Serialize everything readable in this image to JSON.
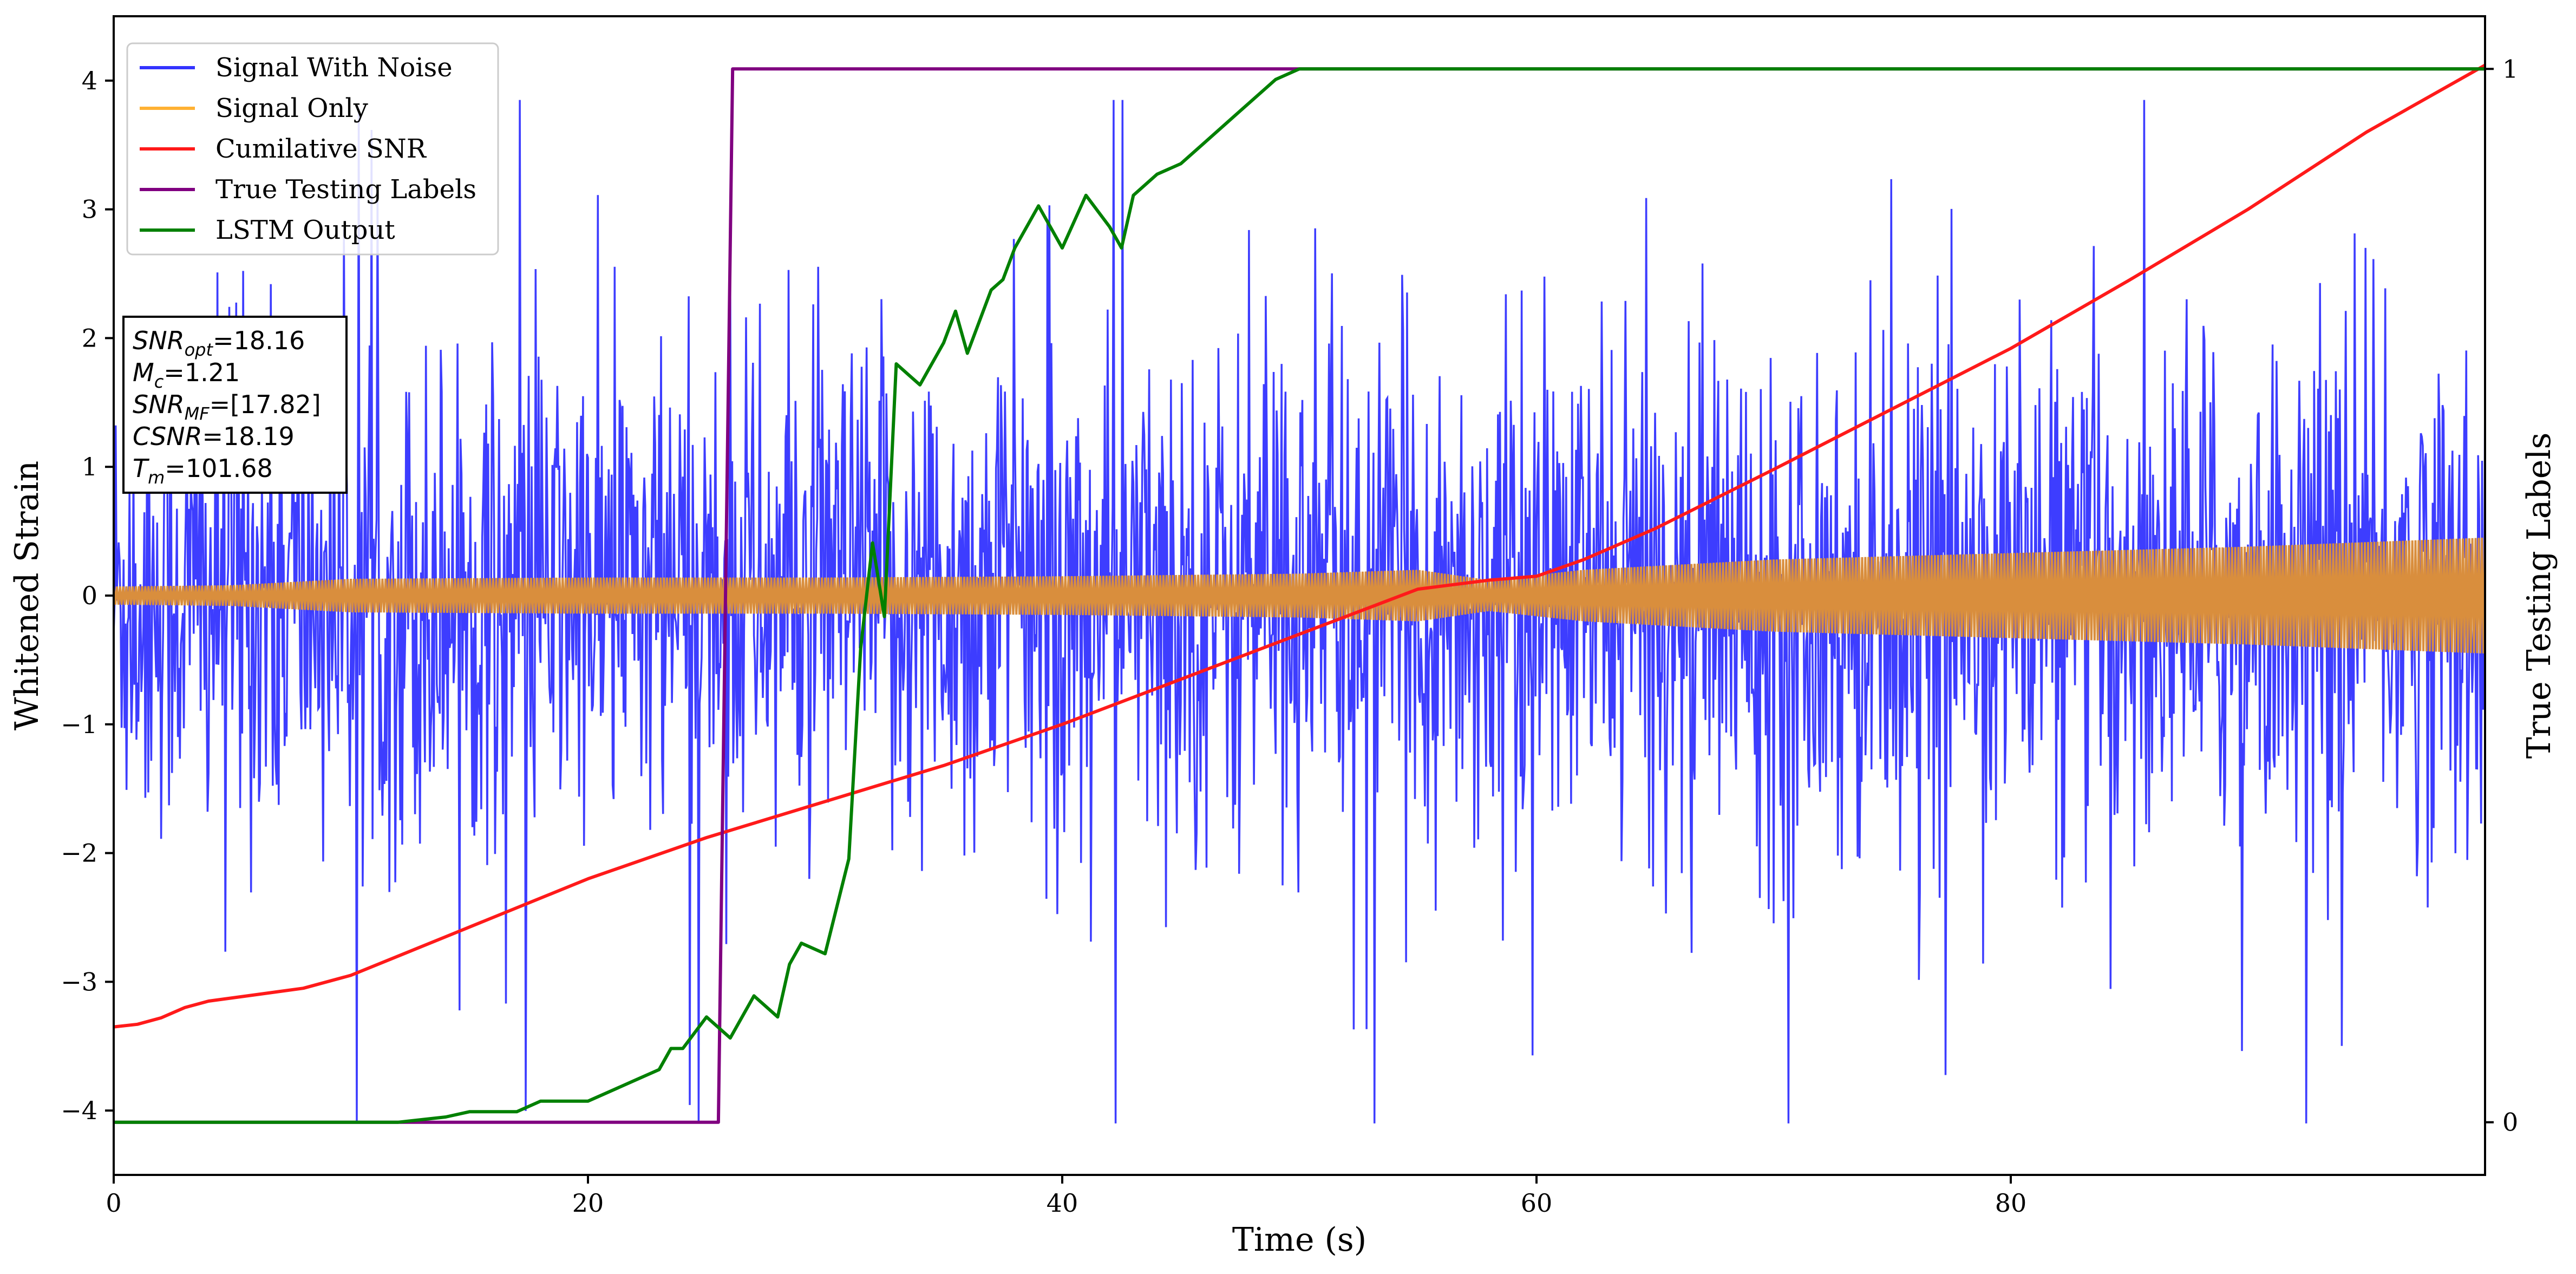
{
  "chart_data": {
    "type": "line",
    "xlabel": "Time (s)",
    "ylabel": "Whitened Strain",
    "ylabel_right": "True Testing Labels",
    "xlim": [
      0,
      100
    ],
    "ylim": [
      -4.5,
      4.5
    ],
    "ylim_right": [
      -0.05,
      1.05
    ],
    "x_ticks": [
      0,
      20,
      40,
      60,
      80
    ],
    "y_ticks": [
      -4,
      -3,
      -2,
      -1,
      0,
      1,
      2,
      3,
      4
    ],
    "y_ticks_right": [
      0,
      1
    ],
    "x_tick_labels": [
      "0",
      "20",
      "40",
      "60",
      "80"
    ],
    "y_tick_labels": [
      "−4",
      "−3",
      "−2",
      "−1",
      "0",
      "1",
      "2",
      "3",
      "4"
    ],
    "y_tick_labels_right": [
      "0",
      "1"
    ],
    "legend": [
      {
        "label": "Signal With Noise",
        "color": "#3333ff"
      },
      {
        "label": "Signal Only",
        "color": "#ffb133"
      },
      {
        "label": "Cumilative SNR",
        "color": "#ff1a1a"
      },
      {
        "label": "True Testing Labels",
        "color": "#800080"
      },
      {
        "label": "LSTM Output",
        "color": "#008000"
      }
    ],
    "annotation": {
      "snr_opt": {
        "symbol": "SNR",
        "sub": "opt",
        "value": "=18.16"
      },
      "mc": {
        "symbol": "M",
        "sub": "c",
        "value": "=1.21"
      },
      "snr_mf": {
        "symbol": "SNR",
        "sub": "MF",
        "value": "=[17.82]"
      },
      "csnr": {
        "symbol": "CSNR",
        "sub": "",
        "value": "=18.19"
      },
      "tm": {
        "symbol": "T",
        "sub": "m",
        "value": "=101.68"
      }
    },
    "series": [
      {
        "name": "Signal With Noise",
        "color": "#3333ff",
        "style": "noise",
        "x_range": [
          0,
          100
        ],
        "typical_upper": 1.2,
        "typical_lower": -1.2,
        "max": 3.85,
        "min": -4.1
      },
      {
        "name": "Signal Only",
        "color": "#d98e3d",
        "style": "envelope",
        "envelope": [
          [
            0,
            0.07
          ],
          [
            5,
            0.08
          ],
          [
            10,
            0.13
          ],
          [
            20,
            0.14
          ],
          [
            30,
            0.14
          ],
          [
            40,
            0.15
          ],
          [
            50,
            0.17
          ],
          [
            55,
            0.2
          ],
          [
            58,
            0.12
          ],
          [
            62,
            0.2
          ],
          [
            70,
            0.28
          ],
          [
            80,
            0.33
          ],
          [
            90,
            0.38
          ],
          [
            100,
            0.45
          ]
        ]
      },
      {
        "name": "Cumilative SNR",
        "color": "#ff1a1a",
        "style": "line",
        "x": [
          0,
          1,
          2,
          3,
          4,
          6,
          8,
          10,
          14,
          20,
          25,
          30,
          35,
          40,
          45,
          50,
          55,
          58,
          60,
          62,
          65,
          70,
          75,
          80,
          85,
          90,
          95,
          100
        ],
        "y": [
          -3.35,
          -3.33,
          -3.28,
          -3.2,
          -3.15,
          -3.1,
          -3.05,
          -2.95,
          -2.65,
          -2.2,
          -1.88,
          -1.6,
          -1.32,
          -1.0,
          -0.65,
          -0.3,
          0.05,
          0.12,
          0.15,
          0.28,
          0.52,
          0.98,
          1.45,
          1.92,
          2.45,
          3.0,
          3.6,
          4.12
        ]
      },
      {
        "name": "True Testing Labels",
        "color": "#800080",
        "style": "step",
        "axis": "right",
        "x": [
          0,
          25.5,
          26.1,
          100
        ],
        "y": [
          0,
          0,
          1,
          1
        ]
      },
      {
        "name": "LSTM Output",
        "color": "#008000",
        "style": "line",
        "axis": "right",
        "x": [
          0,
          12,
          14,
          15,
          17,
          18,
          20,
          21,
          22,
          23,
          23.5,
          24,
          25,
          26,
          27,
          27.5,
          28,
          28.5,
          29,
          30,
          31,
          31.5,
          32,
          32.5,
          33,
          33.5,
          34,
          35,
          35.5,
          36,
          37,
          37.5,
          38,
          39,
          40,
          41,
          42,
          42.5,
          43,
          44,
          45,
          46,
          47,
          48,
          49,
          50,
          52,
          55,
          57,
          60,
          100
        ],
        "y": [
          0,
          0,
          0.005,
          0.01,
          0.01,
          0.02,
          0.02,
          0.03,
          0.04,
          0.05,
          0.07,
          0.07,
          0.1,
          0.08,
          0.12,
          0.11,
          0.1,
          0.15,
          0.17,
          0.16,
          0.25,
          0.45,
          0.55,
          0.48,
          0.72,
          0.71,
          0.7,
          0.74,
          0.77,
          0.73,
          0.79,
          0.8,
          0.83,
          0.87,
          0.83,
          0.88,
          0.85,
          0.83,
          0.88,
          0.9,
          0.91,
          0.93,
          0.95,
          0.97,
          0.99,
          1.0,
          1.0,
          1.0,
          1.0,
          1.0,
          1.0
        ]
      }
    ]
  }
}
